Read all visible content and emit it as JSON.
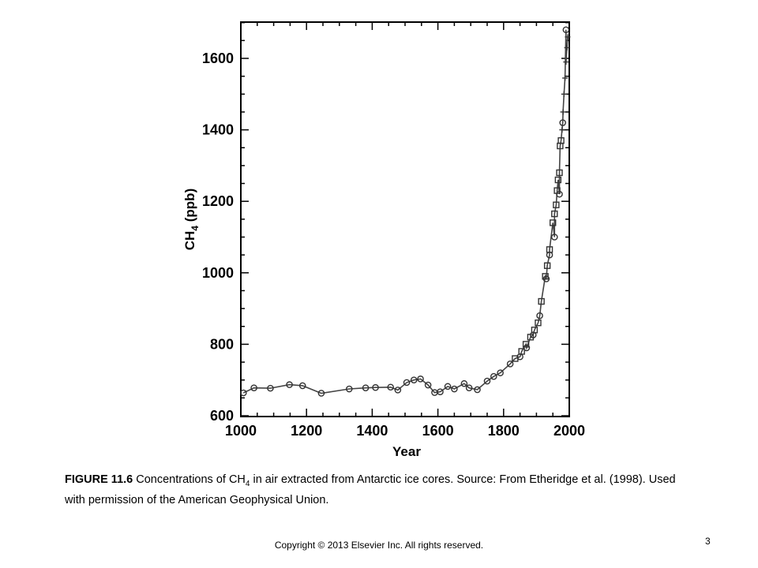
{
  "chart_data": {
    "type": "line",
    "xlabel": "Year",
    "ylabel_main": "CH",
    "ylabel_sub": "4",
    "ylabel_unit": " (ppb)",
    "xlim": [
      1000,
      2000
    ],
    "ylim": [
      600,
      1700
    ],
    "x_ticks": [
      "1000",
      "1200",
      "1400",
      "1600",
      "1800",
      "2000"
    ],
    "y_ticks": [
      "600",
      "800",
      "1000",
      "1200",
      "1400",
      "1600"
    ],
    "grid": false,
    "series": [
      {
        "marker": "circle",
        "x": [
          1008,
          1040,
          1090,
          1148,
          1188,
          1245,
          1330,
          1380,
          1410,
          1456,
          1478,
          1505,
          1527,
          1547,
          1570,
          1590,
          1607,
          1630,
          1650,
          1680,
          1695,
          1720,
          1750,
          1770,
          1790,
          1820,
          1850,
          1870,
          1890,
          1910,
          1930,
          1940,
          1955,
          1970,
          1980,
          1990
        ],
        "y": [
          664,
          678,
          677,
          687,
          684,
          663,
          675,
          678,
          679,
          680,
          672,
          693,
          700,
          703,
          686,
          665,
          667,
          682,
          675,
          690,
          678,
          673,
          697,
          710,
          720,
          745,
          765,
          790,
          826,
          880,
          983,
          1050,
          1100,
          1220,
          1420,
          1680
        ]
      },
      {
        "marker": "square",
        "x": [
          1835,
          1855,
          1868,
          1882,
          1894,
          1905,
          1915,
          1927,
          1933,
          1940,
          1950,
          1955,
          1960,
          1963,
          1966,
          1970,
          1972,
          1975
        ],
        "y": [
          760,
          780,
          800,
          820,
          840,
          860,
          920,
          990,
          1020,
          1065,
          1140,
          1165,
          1190,
          1230,
          1260,
          1280,
          1355,
          1370
        ]
      },
      {
        "marker": "plus",
        "x": [
          1978,
          1981,
          1984,
          1987,
          1990,
          1993,
          1995
        ],
        "y": [
          1400,
          1450,
          1500,
          1545,
          1590,
          1630,
          1660
        ]
      }
    ]
  },
  "caption": {
    "label": "FIGURE 11.6",
    "text_part1": " Concentrations of CH",
    "text_sub": "4",
    "text_part2": " in air extracted from Antarctic ice cores. Source: From Etheridge et al. (1998). Used with permission of the American Geophysical Union."
  },
  "footer": {
    "copyright": "Copyright © 2013 Elsevier Inc. All rights reserved.",
    "page_number": "3"
  }
}
